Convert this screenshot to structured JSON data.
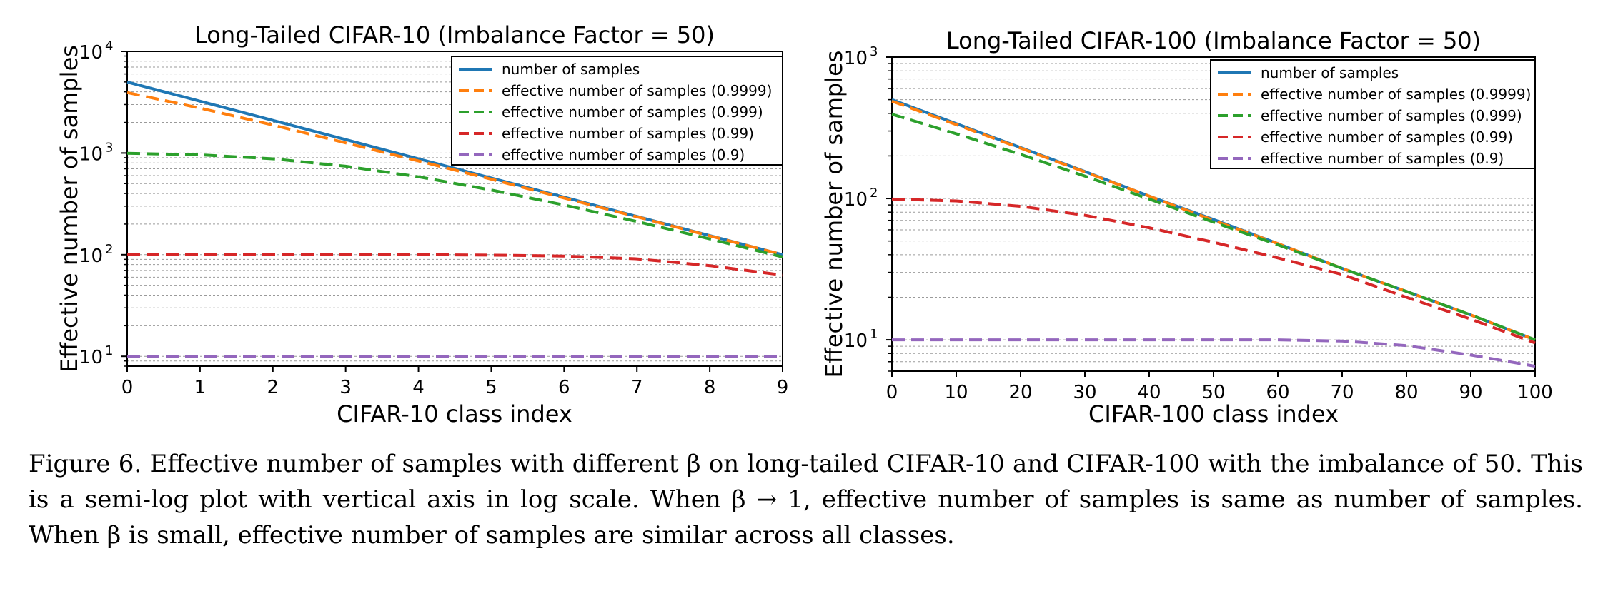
{
  "colors": {
    "number_of_samples": "#1f77b4",
    "beta_0_9999": "#ff7f0e",
    "beta_0_999": "#2ca02c",
    "beta_0_99": "#d62728",
    "beta_0_9": "#9467bd"
  },
  "caption": {
    "text": "Figure 6. Effective number of samples with different β on long-tailed CIFAR-10 and CIFAR-100 with the imbalance of 50. This is a semi-log plot with vertical axis in log scale. When β → 1, effective number of samples is same as number of samples. When β is small, effective number of samples are similar across all classes."
  },
  "chart_data": [
    {
      "type": "line",
      "title": "Long-Tailed CIFAR-10 (Imbalance Factor = 50)",
      "xlabel": "CIFAR-10 class index",
      "ylabel": "Effective number of samples",
      "xlim": [
        0,
        9
      ],
      "ylim": [
        8,
        10000
      ],
      "yscale": "log",
      "grid": "horizontal minor log gridlines",
      "legend_position": "top-right",
      "x_ticks": [
        "0",
        "1",
        "2",
        "3",
        "4",
        "5",
        "6",
        "7",
        "8",
        "9"
      ],
      "y_ticks": [
        {
          "value": 10,
          "base": "10",
          "exp": "1"
        },
        {
          "value": 100,
          "base": "10",
          "exp": "2"
        },
        {
          "value": 1000,
          "base": "10",
          "exp": "3"
        },
        {
          "value": 10000,
          "base": "10",
          "exp": "4"
        }
      ],
      "x": [
        0,
        1,
        2,
        3,
        4,
        5,
        6,
        7,
        8,
        9
      ],
      "series": [
        {
          "name": "number of samples",
          "style": "solid",
          "color": "#1f77b4",
          "values": [
            5000,
            3236,
            2094,
            1355,
            877,
            568,
            368,
            238,
            154,
            100
          ]
        },
        {
          "name": "effective number of samples (0.9999)",
          "style": "dashed",
          "color": "#ff7f0e",
          "values": [
            3935,
            2766,
            1886,
            1259,
            836,
            552,
            361,
            236,
            153,
            100
          ]
        },
        {
          "name": "effective number of samples (0.999)",
          "style": "dashed",
          "color": "#2ca02c",
          "values": [
            993,
            960,
            877,
            742,
            584,
            433,
            308,
            212,
            143,
            95
          ]
        },
        {
          "name": "effective number of samples (0.99)",
          "style": "dashed",
          "color": "#d62728",
          "values": [
            100,
            100,
            100,
            100,
            100,
            99,
            97,
            91,
            78,
            63
          ]
        },
        {
          "name": "effective number of samples (0.9)",
          "style": "dashed",
          "color": "#9467bd",
          "values": [
            10,
            10,
            10,
            10,
            10,
            10,
            10,
            10,
            10,
            10
          ]
        }
      ]
    },
    {
      "type": "line",
      "title": "Long-Tailed CIFAR-100 (Imbalance Factor = 50)",
      "xlabel": "CIFAR-100 class index",
      "ylabel": "Effective number of samples",
      "xlim": [
        0,
        100
      ],
      "ylim": [
        6,
        1000
      ],
      "yscale": "log",
      "grid": "horizontal minor log gridlines",
      "legend_position": "top-right",
      "x_ticks": [
        "0",
        "10",
        "20",
        "30",
        "40",
        "50",
        "60",
        "70",
        "80",
        "90",
        "100"
      ],
      "y_ticks": [
        {
          "value": 10,
          "base": "10",
          "exp": "1"
        },
        {
          "value": 100,
          "base": "10",
          "exp": "2"
        },
        {
          "value": 1000,
          "base": "10",
          "exp": "3"
        }
      ],
      "x": [
        0,
        10,
        20,
        30,
        40,
        50,
        60,
        70,
        80,
        90,
        100
      ],
      "series": [
        {
          "name": "number of samples",
          "style": "solid",
          "color": "#1f77b4",
          "values": [
            500,
            338,
            229,
            155,
            104,
            71,
            48,
            32,
            22,
            15,
            10
          ]
        },
        {
          "name": "effective number of samples (0.9999)",
          "style": "dashed",
          "color": "#ff7f0e",
          "values": [
            488,
            333,
            227,
            154,
            104,
            70,
            48,
            32,
            22,
            15,
            10
          ]
        },
        {
          "name": "effective number of samples (0.999)",
          "style": "dashed",
          "color": "#2ca02c",
          "values": [
            394,
            287,
            205,
            144,
            99,
            68,
            47,
            32,
            22,
            15,
            10
          ]
        },
        {
          "name": "effective number of samples (0.99)",
          "style": "dashed",
          "color": "#d62728",
          "values": [
            99,
            96,
            88,
            76,
            62,
            49,
            38,
            29,
            20,
            14,
            9.5
          ]
        },
        {
          "name": "effective number of samples (0.9)",
          "style": "dashed",
          "color": "#9467bd",
          "values": [
            10,
            10,
            10,
            10,
            10,
            10,
            10,
            9.8,
            9.1,
            7.8,
            6.5
          ]
        }
      ]
    }
  ]
}
